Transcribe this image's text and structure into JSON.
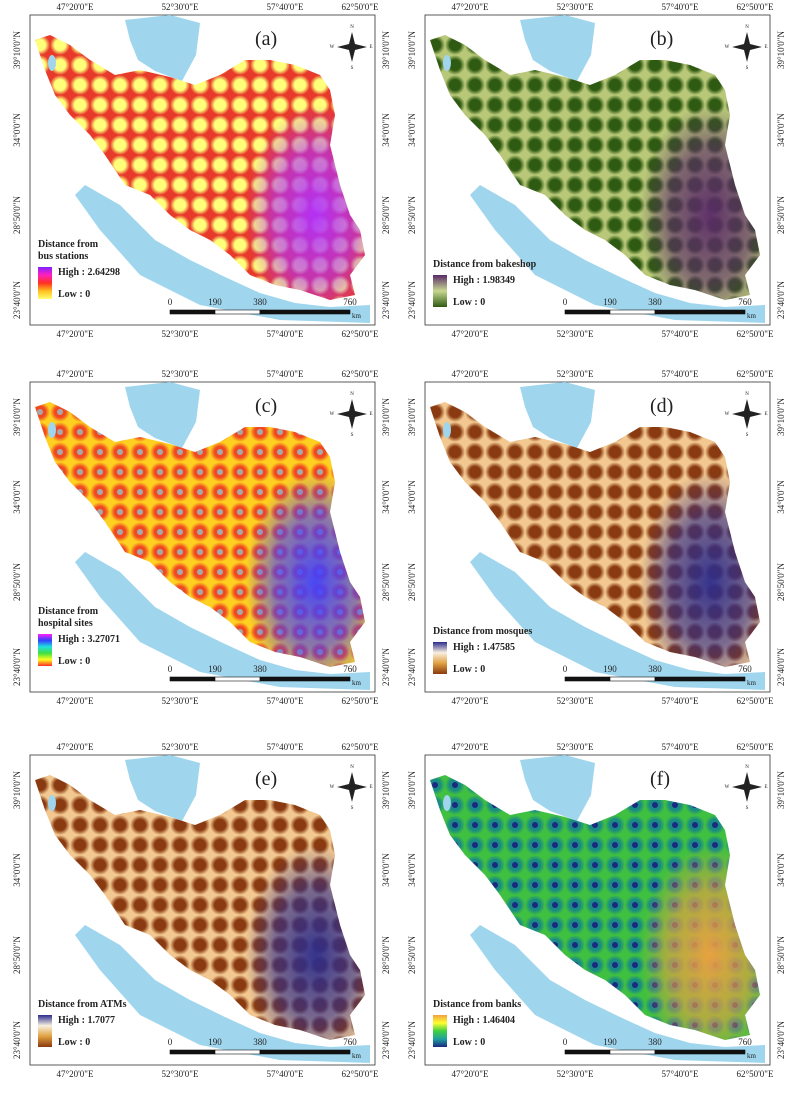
{
  "lon_labels": [
    "47°20'0\"E",
    "52°30'0\"E",
    "57°40'0\"E",
    "62°50'0\"E"
  ],
  "lat_labels": [
    "39°10'0\"N",
    "34°0'0\"N",
    "28°50'0\"N",
    "23°40'0\"N"
  ],
  "scale_bar": {
    "labels": [
      0,
      190,
      380,
      760
    ],
    "unit": "km"
  },
  "compass": [
    "N",
    "E",
    "S",
    "W"
  ],
  "panels": [
    {
      "letter": "(a)",
      "legend_title": [
        "Distance from",
        "bus stations"
      ],
      "high": "High : 2.64298",
      "low": "Low : 0",
      "colors": {
        "low": "#ffff7a",
        "mid": "#e83a2a",
        "high": "#b030ff",
        "dot": null
      },
      "legend_colors": [
        "#8020ff",
        "#ff20c0",
        "#ff3020",
        "#ffc020",
        "#ffff70"
      ]
    },
    {
      "letter": "(b)",
      "legend_title": [
        "Distance from bakeshop"
      ],
      "high": "High : 1.98349",
      "low": "Low : 0",
      "colors": {
        "low": "#2f5a12",
        "mid": "#b8c878",
        "high": "#5a2a68",
        "dot": null
      },
      "legend_colors": [
        "#5a2a68",
        "#c8d890",
        "#2f5a12"
      ]
    },
    {
      "letter": "(c)",
      "legend_title": [
        "Distance from",
        "hospital sites"
      ],
      "high": "High : 3.27071",
      "low": "Low : 0",
      "colors": {
        "low": "#f04820",
        "mid": "#ffd020",
        "high": "#4040ff",
        "dot": "#a8a8a8"
      },
      "legend_colors": [
        "#ff20ff",
        "#3040ff",
        "#20e0e0",
        "#40e040",
        "#ffff20",
        "#ff3020"
      ]
    },
    {
      "letter": "(d)",
      "legend_title": [
        "Distance from mosques"
      ],
      "high": "High : 1.47585",
      "low": "Low : 0",
      "colors": {
        "low": "#8a3a10",
        "mid": "#f2c890",
        "high": "#2c2c8c",
        "dot": null
      },
      "legend_colors": [
        "#2c2c8c",
        "#f8f0e0",
        "#e0a040",
        "#8a3a10"
      ]
    },
    {
      "letter": "(e)",
      "legend_title": [
        "Distance from ATMs"
      ],
      "high": "High : 1.7077",
      "low": "Low : 0",
      "colors": {
        "low": "#8a3a10",
        "mid": "#f2c890",
        "high": "#2c2c8c",
        "dot": null
      },
      "legend_colors": [
        "#2c2c8c",
        "#f8f0e0",
        "#e0a040",
        "#8a3a10"
      ]
    },
    {
      "letter": "(f)",
      "legend_title": [
        "Distance from banks"
      ],
      "high": "High : 1.46404",
      "low": "Low : 0",
      "colors": {
        "low": "#1a8a84",
        "mid": "#40c040",
        "high": "#f0a040",
        "dot": "#1a2a80"
      },
      "legend_colors": [
        "#f0a040",
        "#ffff30",
        "#40d040",
        "#20a0a0",
        "#1a2a80"
      ]
    }
  ]
}
